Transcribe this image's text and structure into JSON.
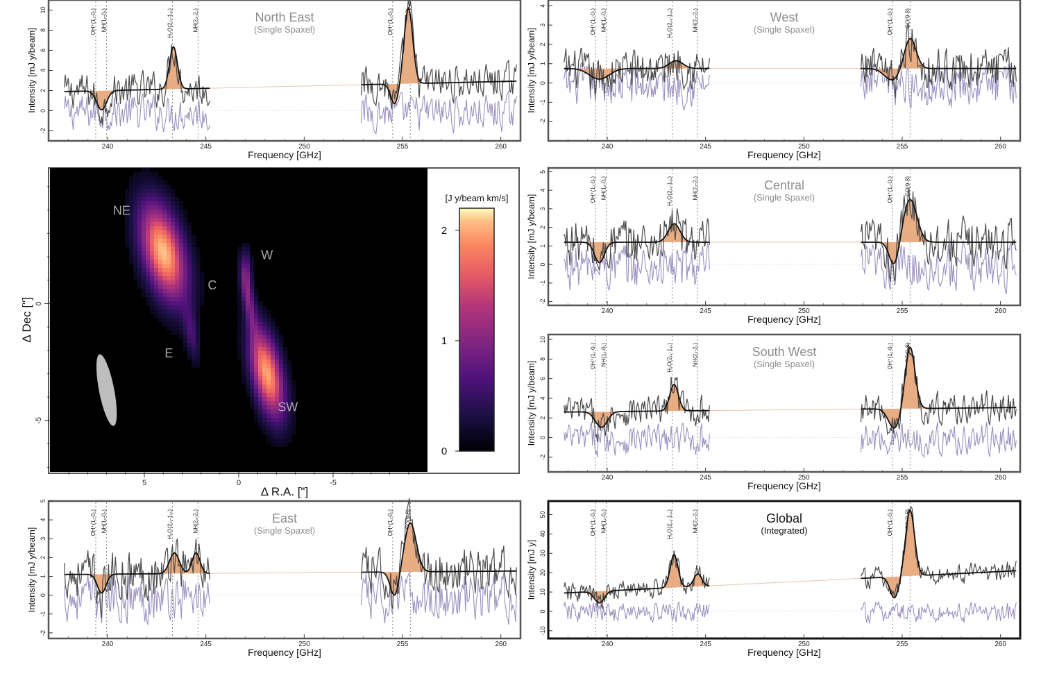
{
  "colors": {
    "data": "#4a4a4a",
    "residual": "#9a8fbf",
    "fit": "#111111",
    "fill": "#e8a97c",
    "frame": "#555555",
    "global_frame": "#111111",
    "map_bg": "#000000",
    "beam": "#bdbdbd",
    "label_gray": "#8c8c8c"
  },
  "lines": [
    {
      "label": "OH⁺(1₁-0₁)",
      "freq": 239.4
    },
    {
      "label": "NH(1₂-0₁)",
      "freq": 239.95
    },
    {
      "label": "H₂O(2₁₁-1₁₁)",
      "freq": 243.3
    },
    {
      "label": "NH(2₃-2₁)",
      "freq": 244.6
    },
    {
      "label": "OH⁺(1₁-0₁)",
      "freq": 254.5
    },
    {
      "label": "CO(9-8)",
      "freq": 255.4
    }
  ],
  "chart_data": [
    {
      "type": "line",
      "panel": "NE",
      "title": "North East",
      "subtitle": "(Single Spaxel)",
      "xlabel": "Frequency [GHz]",
      "ylabel": "Intensity [mJ y/beam]",
      "xlim": [
        237,
        261
      ],
      "ylim": [
        -3,
        11
      ],
      "xticks": [
        240,
        245,
        250,
        255,
        260
      ],
      "yticks": [
        -2,
        0,
        2,
        4,
        6,
        8,
        10
      ],
      "windows": [
        [
          237.8,
          245.2
        ],
        [
          252.9,
          260.8
        ]
      ],
      "continuum": 1.9,
      "continuum_slope": 0.045,
      "offset": 0,
      "noise": 1.0,
      "components": [
        {
          "freq": 239.7,
          "amp": -1.9,
          "width": 0.25
        },
        {
          "freq": 243.35,
          "amp": 4.2,
          "width": 0.2
        },
        {
          "freq": 254.6,
          "amp": -2.0,
          "width": 0.2
        },
        {
          "freq": 255.3,
          "amp": 7.5,
          "width": 0.22
        }
      ],
      "highlight": false
    },
    {
      "type": "line",
      "panel": "W",
      "title": "West",
      "subtitle": "(Single Spaxel)",
      "xlabel": "Frequency [GHz]",
      "ylabel": "Intensity [mJ y/beam]",
      "xlim": [
        237,
        261
      ],
      "ylim": [
        -3,
        4.3
      ],
      "xticks": [
        240,
        245,
        250,
        255,
        260
      ],
      "yticks": [
        -2,
        -1,
        0,
        1,
        2,
        3,
        4
      ],
      "windows": [
        [
          237.8,
          245.2
        ],
        [
          252.9,
          260.8
        ]
      ],
      "continuum": 0.75,
      "continuum_slope": 0,
      "offset": 0,
      "noise": 0.6,
      "components": [
        {
          "freq": 239.6,
          "amp": -0.55,
          "width": 0.5
        },
        {
          "freq": 243.5,
          "amp": 0.4,
          "width": 0.35
        },
        {
          "freq": 254.5,
          "amp": -0.6,
          "width": 0.4
        },
        {
          "freq": 255.4,
          "amp": 1.6,
          "width": 0.3
        }
      ],
      "highlight": false
    },
    {
      "type": "line",
      "panel": "C",
      "title": "Central",
      "subtitle": "(Single Spaxel)",
      "xlabel": "Frequency [GHz]",
      "ylabel": "Intensity [mJ y/beam]",
      "xlim": [
        237,
        261
      ],
      "ylim": [
        -2.2,
        5.2
      ],
      "xticks": [
        240,
        245,
        250,
        255,
        260
      ],
      "yticks": [
        -2,
        -1,
        0,
        1,
        2,
        3,
        4,
        5
      ],
      "windows": [
        [
          237.8,
          245.2
        ],
        [
          252.9,
          260.8
        ]
      ],
      "continuum": 1.2,
      "continuum_slope": 0,
      "offset": 0,
      "noise": 0.7,
      "components": [
        {
          "freq": 239.6,
          "amp": -1.1,
          "width": 0.25
        },
        {
          "freq": 243.4,
          "amp": 1.0,
          "width": 0.3
        },
        {
          "freq": 254.6,
          "amp": -1.3,
          "width": 0.25
        },
        {
          "freq": 255.4,
          "amp": 2.3,
          "width": 0.35
        }
      ],
      "highlight": false
    },
    {
      "type": "line",
      "panel": "SW",
      "title": "South West",
      "subtitle": "(Single Spaxel)",
      "xlabel": "Frequency [GHz]",
      "ylabel": "Intensity [mJ y/beam]",
      "xlim": [
        237,
        261
      ],
      "ylim": [
        -3.5,
        10.5
      ],
      "xticks": [
        240,
        245,
        250,
        255,
        260
      ],
      "yticks": [
        -2,
        0,
        2,
        4,
        6,
        8,
        10
      ],
      "windows": [
        [
          237.8,
          245.2
        ],
        [
          252.9,
          260.8
        ]
      ],
      "continuum": 2.6,
      "continuum_slope": 0.02,
      "offset": 0,
      "noise": 0.9,
      "components": [
        {
          "freq": 239.7,
          "amp": -1.6,
          "width": 0.3
        },
        {
          "freq": 243.4,
          "amp": 2.7,
          "width": 0.22
        },
        {
          "freq": 254.6,
          "amp": -2.0,
          "width": 0.3
        },
        {
          "freq": 255.4,
          "amp": 6.3,
          "width": 0.25
        }
      ],
      "highlight": false
    },
    {
      "type": "line",
      "panel": "E",
      "title": "East",
      "subtitle": "(Single Spaxel)",
      "xlabel": "Frequency [GHz]",
      "ylabel": "Intensity [mJ y/beam]",
      "xlim": [
        237,
        261
      ],
      "ylim": [
        -2.3,
        5
      ],
      "xticks": [
        240,
        245,
        250,
        255,
        260
      ],
      "yticks": [
        -2,
        -1,
        0,
        1,
        2,
        3,
        4,
        5
      ],
      "windows": [
        [
          237.8,
          245.2
        ],
        [
          252.9,
          260.8
        ]
      ],
      "continuum": 1.1,
      "continuum_slope": 0.008,
      "offset": 0,
      "noise": 0.7,
      "components": [
        {
          "freq": 239.7,
          "amp": -1.0,
          "width": 0.22
        },
        {
          "freq": 243.4,
          "amp": 1.1,
          "width": 0.25
        },
        {
          "freq": 244.5,
          "amp": 1.1,
          "width": 0.2
        },
        {
          "freq": 254.6,
          "amp": -1.3,
          "width": 0.22
        },
        {
          "freq": 255.4,
          "amp": 2.6,
          "width": 0.3
        }
      ],
      "highlight": false
    },
    {
      "type": "line",
      "panel": "Global",
      "title": "Global",
      "subtitle": "(Integrated)",
      "xlabel": "Frequency [GHz]",
      "ylabel": "Intensity [mJ y]",
      "xlim": [
        237,
        261
      ],
      "ylim": [
        -14,
        57
      ],
      "xticks": [
        240,
        245,
        250,
        255,
        260
      ],
      "yticks": [
        -10,
        0,
        10,
        20,
        30,
        40,
        50
      ],
      "windows": [
        [
          237.8,
          245.2
        ],
        [
          252.9,
          260.8
        ]
      ],
      "continuum": 9.5,
      "continuum_slope": 0.5,
      "offset": 0,
      "noise": 3.0,
      "components": [
        {
          "freq": 239.6,
          "amp": -6.0,
          "width": 0.25
        },
        {
          "freq": 243.4,
          "amp": 17.0,
          "width": 0.2
        },
        {
          "freq": 244.6,
          "amp": 6.5,
          "width": 0.2
        },
        {
          "freq": 254.6,
          "amp": -11.0,
          "width": 0.22
        },
        {
          "freq": 255.4,
          "amp": 34.0,
          "width": 0.23
        }
      ],
      "highlight": true
    },
    {
      "type": "heatmap",
      "panel": "map",
      "xlabel": "Δ R.A. [\"]",
      "ylabel": "Δ Dec [\"]",
      "xlim": [
        10,
        -10
      ],
      "ylim": [
        -7.2,
        5.8
      ],
      "xticks": [
        5,
        0,
        -5
      ],
      "yticks": [
        -5,
        0
      ],
      "colorbar": {
        "label": "[J y/beam km/s]",
        "range": [
          0,
          2.2
        ],
        "ticks": [
          0,
          1,
          2
        ]
      },
      "sources": [
        {
          "name": "NE",
          "x": 4.0,
          "y": 2.2,
          "sx": 0.75,
          "sy": 1.55,
          "rot": -20,
          "peak": 2.1
        },
        {
          "name": "SW",
          "x": -1.5,
          "y": -3.0,
          "sx": 0.55,
          "sy": 1.4,
          "rot": -16,
          "peak": 2.0
        },
        {
          "name": "C",
          "x": -0.5,
          "y": 0.2,
          "sx": 0.22,
          "sy": 1.05,
          "rot": -12,
          "peak": 0.8
        },
        {
          "name": "E",
          "x": 2.5,
          "y": -1.3,
          "sx": 0.25,
          "sy": 0.85,
          "rot": -10,
          "peak": 0.55
        },
        {
          "name": "W",
          "x": -0.4,
          "y": 1.4,
          "sx": 0.2,
          "sy": 0.7,
          "rot": 0,
          "peak": 0.6
        }
      ],
      "labels": [
        {
          "text": "NE",
          "x": 6.2,
          "y": 3.8
        },
        {
          "text": "W",
          "x": -1.5,
          "y": 1.9
        },
        {
          "text": "C",
          "x": 1.4,
          "y": 0.6
        },
        {
          "text": "E",
          "x": 3.7,
          "y": -2.3
        },
        {
          "text": "SW",
          "x": -2.6,
          "y": -4.6
        }
      ],
      "beam": {
        "x": 7.0,
        "y": -3.7,
        "major": 2.6,
        "minor": 0.72,
        "rot": -11
      }
    }
  ]
}
